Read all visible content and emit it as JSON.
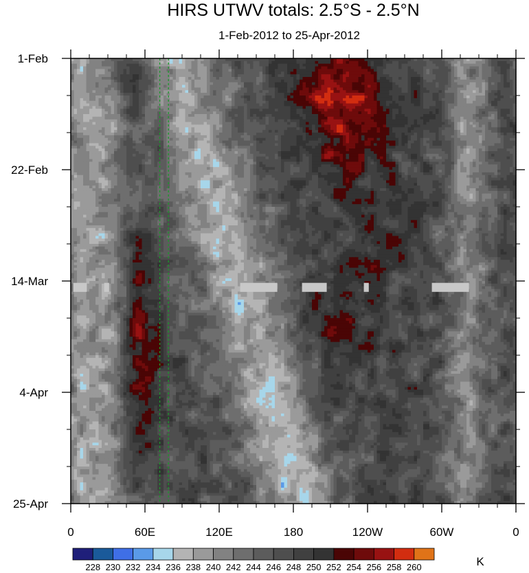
{
  "chart_data": {
    "type": "heatmap",
    "title": "HIRS UTWV totals: 2.5°S - 2.5°N",
    "subtitle": "1-Feb-2012 to 25-Apr-2012",
    "x_ticks": [
      "0",
      "60E",
      "120E",
      "180",
      "120W",
      "60W",
      "0"
    ],
    "x_tick_values": [
      0,
      60,
      120,
      180,
      240,
      300,
      360
    ],
    "x_range": [
      0,
      360
    ],
    "y_ticks": [
      "1-Feb",
      "22-Feb",
      "14-Mar",
      "4-Apr",
      "25-Apr"
    ],
    "y_tick_values": [
      0,
      21,
      42,
      63,
      84
    ],
    "y_range": [
      0,
      84
    ],
    "y_direction": "downward",
    "colorbar": {
      "unit": "K",
      "labels": [
        "228",
        "230",
        "232",
        "234",
        "236",
        "238",
        "240",
        "242",
        "244",
        "246",
        "248",
        "250",
        "252",
        "254",
        "256",
        "258",
        "260"
      ],
      "colors": [
        "#1f1f7a",
        "#1a5a9a",
        "#3f6fe6",
        "#5a9ae8",
        "#a7d6ea",
        "#b4b4b4",
        "#9a9a9a",
        "#828282",
        "#6e6e6e",
        "#5c5c5c",
        "#4e4e4e",
        "#404040",
        "#333333",
        "#4a0505",
        "#6e0b0b",
        "#981212",
        "#d22d10",
        "#e07318"
      ]
    },
    "reference_lines": [
      72,
      79
    ],
    "reference_line_color": "#1a9a2a",
    "missing_data_band_color": "#c8c8c8"
  }
}
